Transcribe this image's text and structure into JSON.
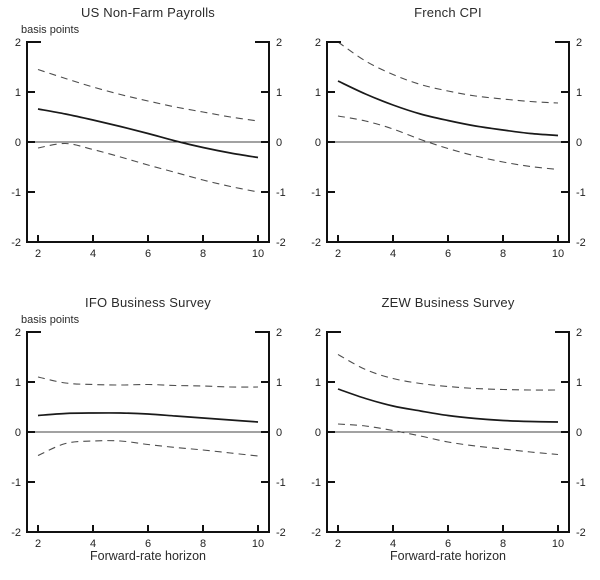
{
  "figure": {
    "background": "#ffffff",
    "line_color": "#1a1a1a",
    "band_color": "#4d4d4d",
    "axis_color": "#111111"
  },
  "chart_data": [
    {
      "type": "line",
      "title": "US Non-Farm Payrolls",
      "ylabel": "basis points",
      "xlabel": "",
      "x": [
        2,
        3,
        4,
        5,
        6,
        7,
        8,
        9,
        10
      ],
      "series": [
        {
          "name": "central-line",
          "style": "solid",
          "values": [
            0.66,
            0.56,
            0.44,
            0.31,
            0.17,
            0.02,
            -0.11,
            -0.22,
            -0.31
          ]
        },
        {
          "name": "upper-band",
          "style": "dashed",
          "values": [
            1.45,
            1.27,
            1.1,
            0.95,
            0.82,
            0.7,
            0.6,
            0.5,
            0.42
          ]
        },
        {
          "name": "lower-band",
          "style": "dashed",
          "values": [
            -0.12,
            -0.03,
            -0.15,
            -0.3,
            -0.46,
            -0.61,
            -0.76,
            -0.89,
            -1.0
          ]
        }
      ],
      "ylim": [
        -2,
        2
      ],
      "xlim": [
        1.6,
        10.4
      ],
      "yticks": [
        2,
        1,
        0,
        -1,
        -2
      ],
      "xticks": [
        2,
        4,
        6,
        8,
        10
      ],
      "zero_line": true,
      "grid": false,
      "y_labels_both_sides": true
    },
    {
      "type": "line",
      "title": "French CPI",
      "ylabel": "",
      "xlabel": "",
      "x": [
        2,
        3,
        4,
        5,
        6,
        7,
        8,
        9,
        10
      ],
      "series": [
        {
          "name": "central-line",
          "style": "solid",
          "values": [
            1.22,
            0.96,
            0.74,
            0.56,
            0.43,
            0.32,
            0.24,
            0.17,
            0.13
          ]
        },
        {
          "name": "upper-band",
          "style": "dashed",
          "values": [
            2.0,
            1.62,
            1.35,
            1.15,
            1.02,
            0.92,
            0.86,
            0.81,
            0.78
          ]
        },
        {
          "name": "lower-band",
          "style": "dashed",
          "values": [
            0.52,
            0.42,
            0.26,
            0.05,
            -0.13,
            -0.28,
            -0.4,
            -0.49,
            -0.55
          ]
        }
      ],
      "ylim": [
        -2,
        2
      ],
      "xlim": [
        1.6,
        10.4
      ],
      "yticks": [
        2,
        1,
        0,
        -1,
        -2
      ],
      "xticks": [
        2,
        4,
        6,
        8,
        10
      ],
      "zero_line": true,
      "grid": false,
      "y_labels_both_sides": true
    },
    {
      "type": "line",
      "title": "IFO Business Survey",
      "ylabel": "basis points",
      "xlabel": "Forward-rate horizon",
      "x": [
        2,
        3,
        4,
        5,
        6,
        7,
        8,
        9,
        10
      ],
      "series": [
        {
          "name": "central-line",
          "style": "solid",
          "values": [
            0.33,
            0.37,
            0.38,
            0.38,
            0.36,
            0.32,
            0.28,
            0.24,
            0.2
          ]
        },
        {
          "name": "upper-band",
          "style": "dashed",
          "values": [
            1.1,
            0.98,
            0.95,
            0.94,
            0.95,
            0.93,
            0.92,
            0.9,
            0.9
          ]
        },
        {
          "name": "lower-band",
          "style": "dashed",
          "values": [
            -0.47,
            -0.23,
            -0.18,
            -0.18,
            -0.25,
            -0.31,
            -0.36,
            -0.42,
            -0.48
          ]
        }
      ],
      "ylim": [
        -2,
        2
      ],
      "xlim": [
        1.6,
        10.4
      ],
      "yticks": [
        2,
        1,
        0,
        -1,
        -2
      ],
      "xticks": [
        2,
        4,
        6,
        8,
        10
      ],
      "zero_line": true,
      "grid": false,
      "y_labels_both_sides": true
    },
    {
      "type": "line",
      "title": "ZEW Business Survey",
      "ylabel": "",
      "xlabel": "Forward-rate horizon",
      "x": [
        2,
        3,
        4,
        5,
        6,
        7,
        8,
        9,
        10
      ],
      "series": [
        {
          "name": "central-line",
          "style": "solid",
          "values": [
            0.86,
            0.67,
            0.52,
            0.42,
            0.33,
            0.27,
            0.23,
            0.21,
            0.2
          ]
        },
        {
          "name": "upper-band",
          "style": "dashed",
          "values": [
            1.55,
            1.25,
            1.07,
            0.97,
            0.91,
            0.87,
            0.85,
            0.84,
            0.84
          ]
        },
        {
          "name": "lower-band",
          "style": "dashed",
          "values": [
            0.16,
            0.12,
            0.03,
            -0.08,
            -0.2,
            -0.28,
            -0.34,
            -0.4,
            -0.45
          ]
        }
      ],
      "ylim": [
        -2,
        2
      ],
      "xlim": [
        1.6,
        10.4
      ],
      "yticks": [
        2,
        1,
        0,
        -1,
        -2
      ],
      "xticks": [
        2,
        4,
        6,
        8,
        10
      ],
      "zero_line": true,
      "grid": false,
      "y_labels_both_sides": true
    }
  ]
}
